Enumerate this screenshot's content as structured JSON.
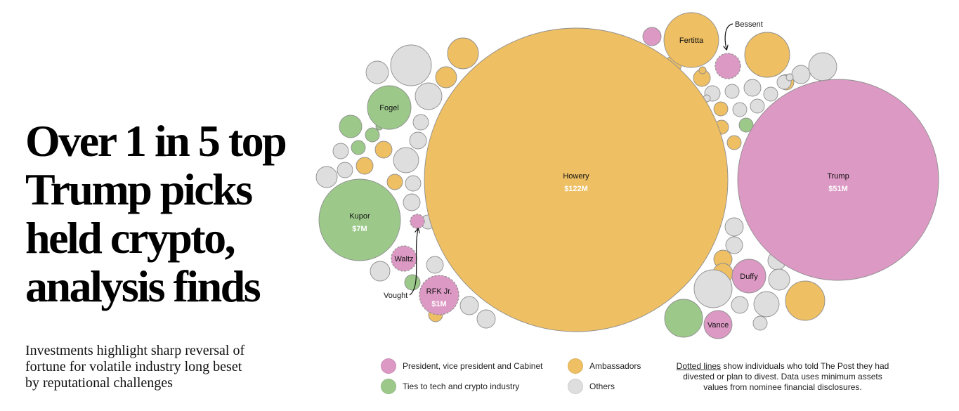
{
  "headline": "Over 1 in 5 top Trump picks held crypto, analysis finds",
  "deck": "Investments highlight sharp reversal of fortune for volatile industry long beset by reputational challenges",
  "colors": {
    "cabinet": "#dc99c4",
    "tech": "#9cc98a",
    "ambassadors": "#eebf63",
    "others": "#dedede",
    "outline": "#8f8f8f"
  },
  "legend": [
    {
      "key": "cabinet",
      "label": "President, vice president and Cabinet"
    },
    {
      "key": "ambassadors",
      "label": "Ambassadors"
    },
    {
      "key": "tech",
      "label": "Ties to tech and crypto industry"
    },
    {
      "key": "others",
      "label": "Others"
    }
  ],
  "note": {
    "underlined": "Dotted lines",
    "rest": " show individuals who told The Post they had divested or plan to divest. Data uses minimum assets values from nominee financial disclosures."
  },
  "chart_data": {
    "type": "bubble",
    "title": "",
    "size_metric": "minimum crypto asset value",
    "labeled_bubbles": [
      {
        "name": "Howery",
        "value_label": "$122M",
        "value_millions": 122,
        "group": "ambassadors",
        "divested": false
      },
      {
        "name": "Trump",
        "value_label": "$51M",
        "value_millions": 51,
        "group": "cabinet",
        "divested": false
      },
      {
        "name": "Kupor",
        "value_label": "$7M",
        "value_millions": 7,
        "group": "tech",
        "divested": false
      },
      {
        "name": "RFK Jr.",
        "value_label": "$1M",
        "value_millions": 1,
        "group": "cabinet",
        "divested": true
      },
      {
        "name": "Fertitta",
        "value_label": "",
        "group": "ambassadors",
        "divested": false
      },
      {
        "name": "Fogel",
        "value_label": "",
        "group": "tech",
        "divested": false
      },
      {
        "name": "Duffy",
        "value_label": "",
        "group": "cabinet",
        "divested": false
      },
      {
        "name": "Waltz",
        "value_label": "",
        "group": "cabinet",
        "divested": true
      },
      {
        "name": "Vance",
        "value_label": "",
        "group": "cabinet",
        "divested": false
      },
      {
        "name": "Bessent",
        "value_label": "",
        "group": "cabinet",
        "divested": true,
        "callout": true
      },
      {
        "name": "Vought",
        "value_label": "",
        "group": "cabinet",
        "divested": true,
        "callout": true
      }
    ],
    "unlabeled_bubble_groups": {
      "ambassadors": 17,
      "tech": 8,
      "cabinet": 1,
      "others": 35
    }
  }
}
